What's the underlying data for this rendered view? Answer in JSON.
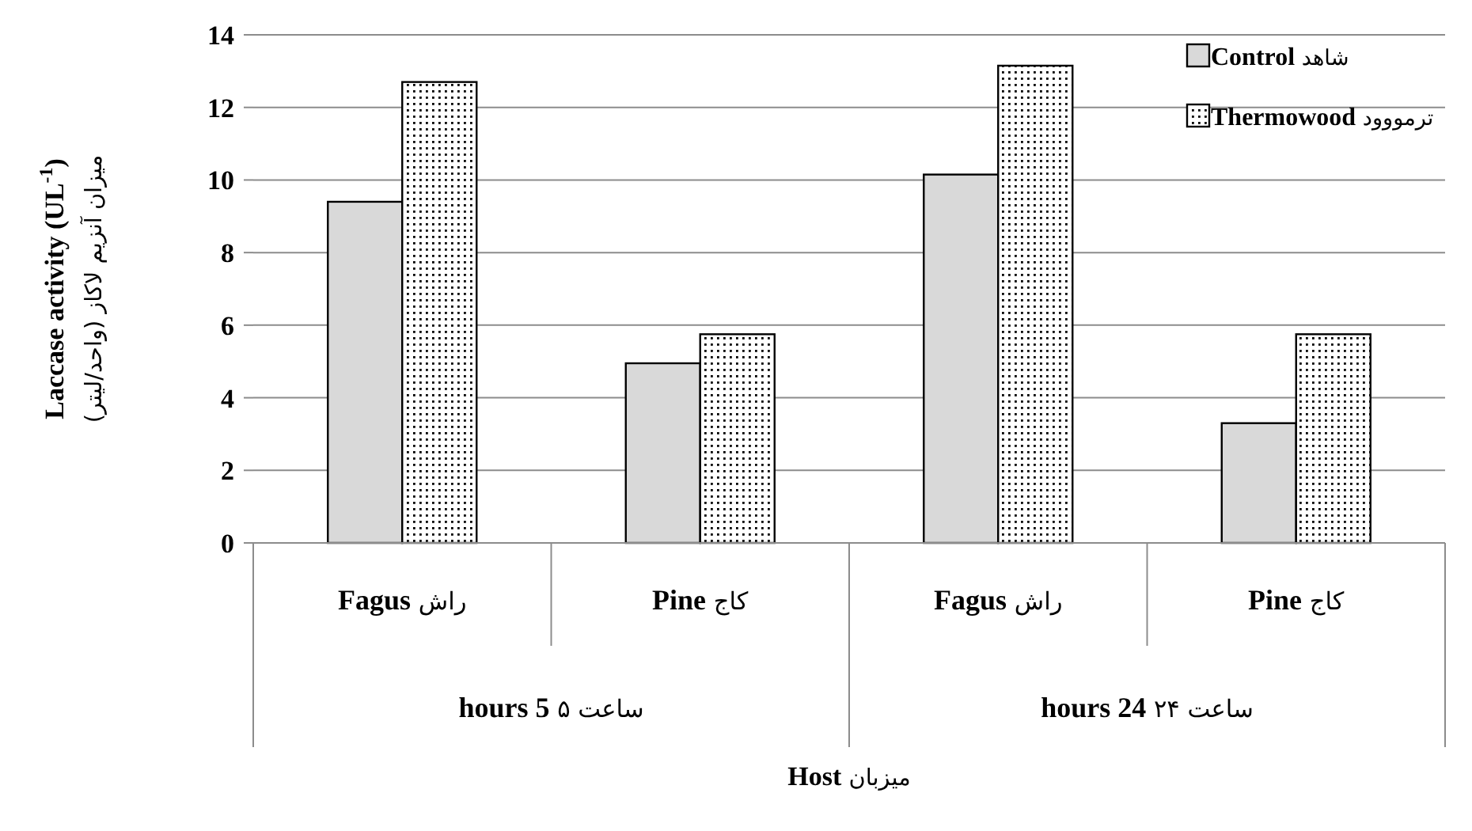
{
  "chart_data": {
    "type": "bar",
    "categories": [
      "**Fagus** راش",
      "**Pine** کاج",
      "**Fagus** راش",
      "**Pine** کاج"
    ],
    "series": [
      {
        "name": "**Control** شاهد",
        "color": "#d9d9d9",
        "values": [
          9.4,
          4.95,
          10.15,
          3.3
        ]
      },
      {
        "name": "**Thermowood** ترمووود",
        "color": "#000000",
        "values": [
          12.7,
          5.75,
          13.15,
          5.75
        ]
      }
    ],
    "annotations": [
      "**hours 5** ساعت ۵",
      "**hours 24** ساعت ۲۴",
      "**Host** میزبان"
    ],
    "ylabel": "**Laccase activity (UL$^{-1}$)**\nمیزان آنزیم لاکاز (واحد/لیتر)",
    "ylim": [
      0,
      14
    ],
    "yticks": [
      0,
      2,
      4,
      6,
      8,
      10,
      12,
      14
    ],
    "grid": "y",
    "legend": "top right"
  }
}
